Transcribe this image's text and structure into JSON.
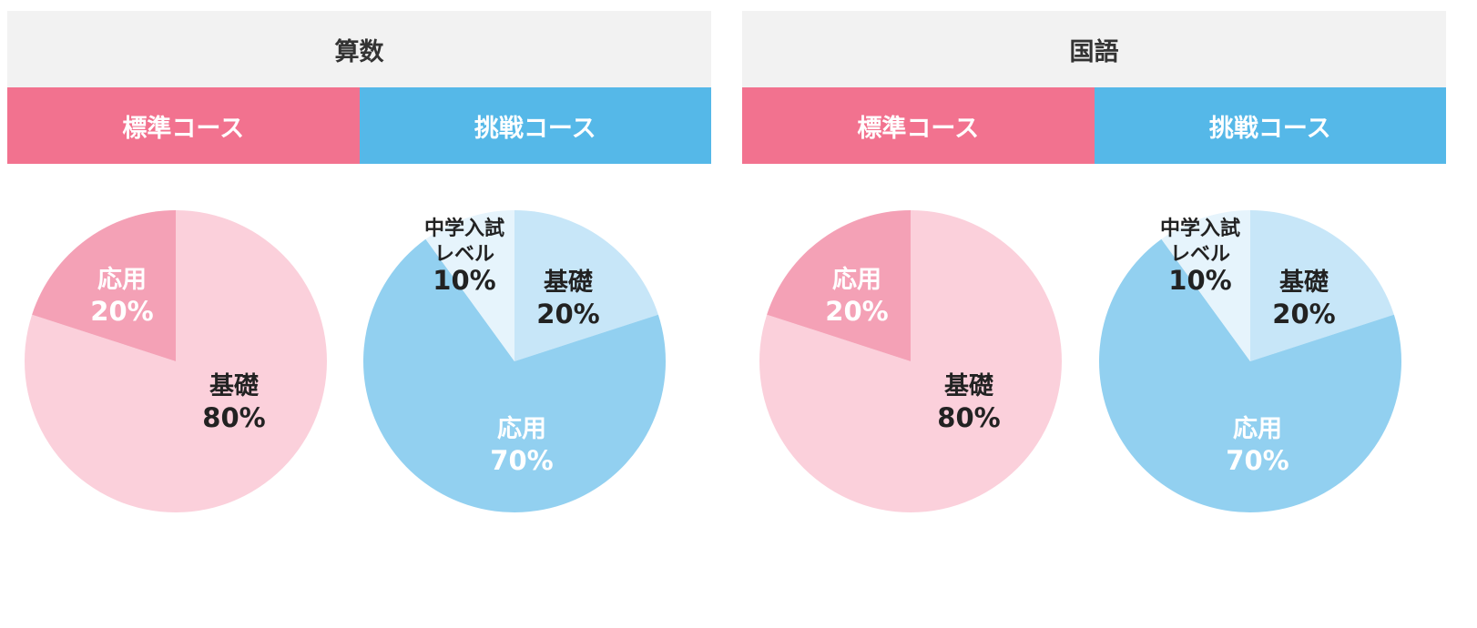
{
  "panels": [
    {
      "title": "算数",
      "courses": [
        {
          "label": "標準コース",
          "color": "#f2728f"
        },
        {
          "label": "挑戦コース",
          "color": "#55b8e8"
        }
      ]
    },
    {
      "title": "国語",
      "courses": [
        {
          "label": "標準コース",
          "color": "#f2728f"
        },
        {
          "label": "挑戦コース",
          "color": "#55b8e8"
        }
      ]
    }
  ],
  "chart_data": [
    {
      "type": "pie",
      "slices": [
        {
          "label": "基礎",
          "value": 80,
          "value_label": "80%",
          "color": "#fbd0db",
          "text_color": "#222222"
        },
        {
          "label": "応用",
          "value": 20,
          "value_label": "20%",
          "color": "#f4a1b6",
          "text_color": "#ffffff"
        }
      ]
    },
    {
      "type": "pie",
      "slices": [
        {
          "label": "基礎",
          "value": 20,
          "value_label": "20%",
          "color": "#c7e6f8",
          "text_color": "#222222"
        },
        {
          "label": "応用",
          "value": 70,
          "value_label": "70%",
          "color": "#92d0f0",
          "text_color": "#ffffff"
        },
        {
          "label": "中学入試レベル",
          "label_lines": [
            "中学入試",
            "レベル"
          ],
          "value": 10,
          "value_label": "10%",
          "color": "#e6f4fc",
          "text_color": "#222222"
        }
      ]
    },
    {
      "type": "pie",
      "slices": [
        {
          "label": "基礎",
          "value": 80,
          "value_label": "80%",
          "color": "#fbd0db",
          "text_color": "#222222"
        },
        {
          "label": "応用",
          "value": 20,
          "value_label": "20%",
          "color": "#f4a1b6",
          "text_color": "#ffffff"
        }
      ]
    },
    {
      "type": "pie",
      "slices": [
        {
          "label": "基礎",
          "value": 20,
          "value_label": "20%",
          "color": "#c7e6f8",
          "text_color": "#222222"
        },
        {
          "label": "応用",
          "value": 70,
          "value_label": "70%",
          "color": "#92d0f0",
          "text_color": "#ffffff"
        },
        {
          "label": "中学入試レベル",
          "label_lines": [
            "中学入試",
            "レベル"
          ],
          "value": 10,
          "value_label": "10%",
          "color": "#e6f4fc",
          "text_color": "#222222"
        }
      ]
    }
  ]
}
